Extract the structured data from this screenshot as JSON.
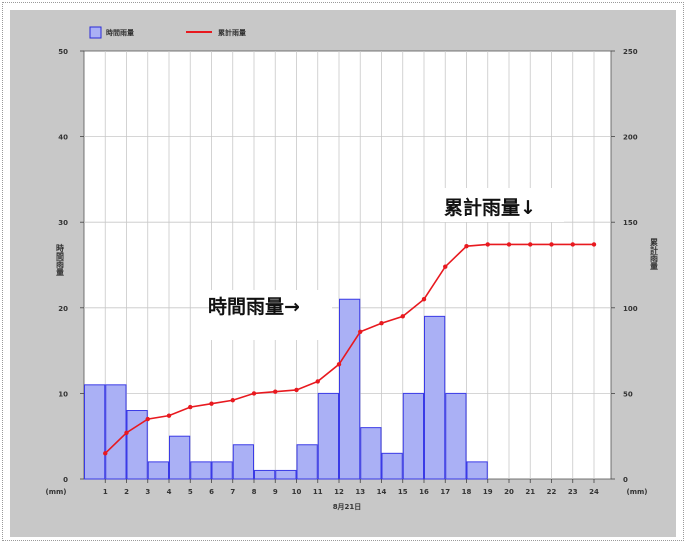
{
  "chart_data": {
    "type": "bar+line",
    "x_categories": [
      "1",
      "2",
      "3",
      "4",
      "5",
      "6",
      "7",
      "8",
      "9",
      "10",
      "11",
      "12",
      "13",
      "14",
      "15",
      "16",
      "17",
      "18",
      "19",
      "20",
      "21",
      "22",
      "23",
      "24"
    ],
    "x_label": "8月21日",
    "y_left": {
      "label": "時間雨量",
      "unit": "(mm)",
      "range": [
        0,
        50
      ],
      "ticks": [
        0,
        10,
        20,
        30,
        40,
        50
      ]
    },
    "y_right": {
      "label": "累計雨量",
      "unit": "(mm)",
      "range": [
        0,
        250
      ],
      "ticks": [
        0,
        50,
        100,
        150,
        200,
        250
      ]
    },
    "grid": true,
    "legend_position": "top-left",
    "series": [
      {
        "name": "時間雨量",
        "type": "bar",
        "axis": "left",
        "color": "#3a3ae6",
        "values": [
          11,
          11,
          8,
          2,
          5,
          2,
          2,
          4,
          1,
          1,
          4,
          10,
          21,
          6,
          3,
          10,
          19,
          10,
          2,
          0,
          0,
          0,
          0,
          0
        ]
      },
      {
        "name": "累計雨量",
        "type": "line",
        "axis": "right",
        "color": "#e8191f",
        "values": [
          15,
          27,
          35,
          37,
          42,
          44,
          46,
          50,
          51,
          52,
          57,
          67,
          86,
          91,
          95,
          105,
          124,
          136,
          137,
          137,
          137,
          137,
          137,
          137
        ]
      }
    ],
    "annotations": [
      {
        "text": "時間雨量→"
      },
      {
        "text": "累計雨量↓"
      }
    ]
  }
}
